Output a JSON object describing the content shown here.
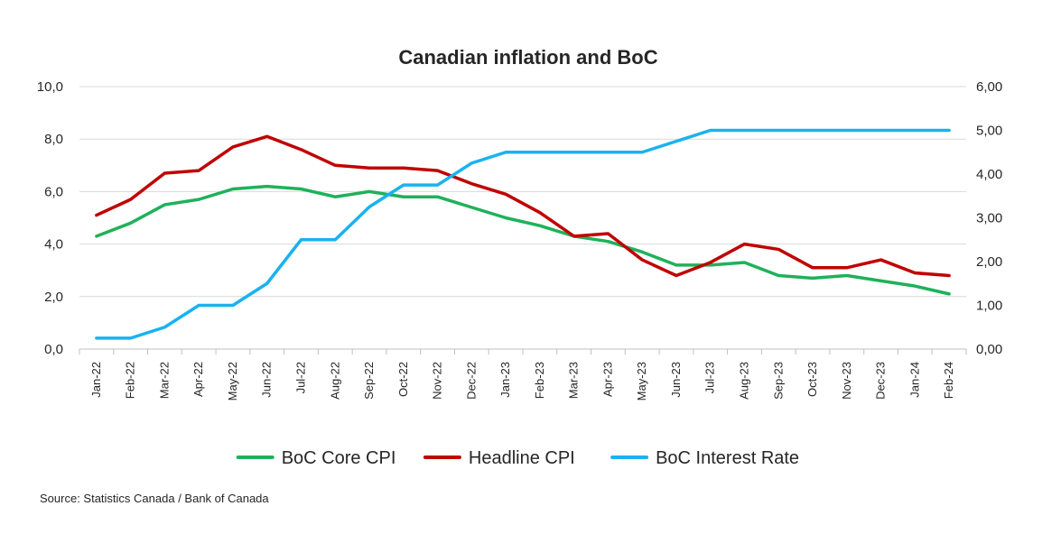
{
  "chart_data": {
    "type": "line",
    "title": "Canadian inflation and BoC",
    "categories": [
      "Jan-22",
      "Feb-22",
      "Mar-22",
      "Apr-22",
      "May-22",
      "Jun-22",
      "Jul-22",
      "Aug-22",
      "Sep-22",
      "Oct-22",
      "Nov-22",
      "Dec-22",
      "Jan-23",
      "Feb-23",
      "Mar-23",
      "Apr-23",
      "May-23",
      "Jun-23",
      "Jul-23",
      "Aug-23",
      "Sep-23",
      "Oct-23",
      "Nov-23",
      "Dec-23",
      "Jan-24",
      "Feb-24"
    ],
    "left_axis": {
      "ylim": [
        0,
        10
      ],
      "ticks": [
        "0,0",
        "2,0",
        "4,0",
        "6,0",
        "8,0",
        "10,0"
      ]
    },
    "right_axis": {
      "ylim": [
        0,
        6
      ],
      "ticks": [
        "0,00",
        "1,00",
        "2,00",
        "3,00",
        "4,00",
        "5,00",
        "6,00"
      ]
    },
    "grid": true,
    "legend_position": "bottom",
    "series": [
      {
        "name": "BoC Core CPI",
        "axis": "left",
        "color": "#1fb15a",
        "values": [
          4.3,
          4.8,
          5.5,
          5.7,
          6.1,
          6.2,
          6.1,
          5.8,
          6.0,
          5.8,
          5.8,
          5.4,
          5.0,
          4.7,
          4.3,
          4.1,
          3.7,
          3.2,
          3.2,
          3.3,
          2.8,
          2.7,
          2.8,
          2.6,
          2.4,
          2.1
        ]
      },
      {
        "name": "Headline CPI",
        "axis": "left",
        "color": "#c00000",
        "values": [
          5.1,
          5.7,
          6.7,
          6.8,
          7.7,
          8.1,
          7.6,
          7.0,
          6.9,
          6.9,
          6.8,
          6.3,
          5.9,
          5.2,
          4.3,
          4.4,
          3.4,
          2.8,
          3.3,
          4.0,
          3.8,
          3.1,
          3.1,
          3.4,
          2.9,
          2.8
        ]
      },
      {
        "name": "BoC Interest Rate",
        "axis": "right",
        "color": "#1ab2ef",
        "values": [
          0.25,
          0.25,
          0.5,
          1.0,
          1.0,
          1.5,
          2.5,
          2.5,
          3.25,
          3.75,
          3.75,
          4.25,
          4.5,
          4.5,
          4.5,
          4.5,
          4.5,
          4.75,
          5.0,
          5.0,
          5.0,
          5.0,
          5.0,
          5.0,
          5.0,
          5.0
        ]
      }
    ],
    "source": "Source: Statistics Canada / Bank of Canada"
  }
}
